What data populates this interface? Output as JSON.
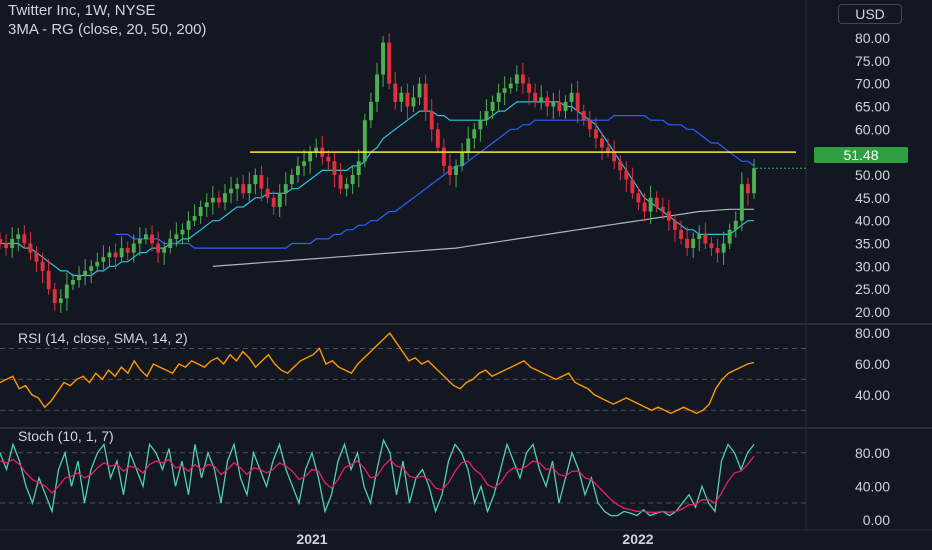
{
  "header": {
    "symbol_line": "Twitter Inc, 1W, NYSE",
    "ma_line": "3MA - RG (close, 20, 50, 200)",
    "currency": "USD",
    "last_price": "51.48"
  },
  "rsi_panel": {
    "label": "RSI (14, close, SMA, 14, 2)"
  },
  "stoch_panel": {
    "label": "Stoch (10, 1, 7)"
  },
  "colors": {
    "background": "#131722",
    "bull": "#4caf50",
    "bear": "#e0303c",
    "sma20": "#26c6da",
    "sma50": "#2962ff",
    "sma200": "#b2b5be",
    "resistance": "#ffeb3b",
    "rsi": "#ff9800",
    "stoch_k": "#4fd1b0",
    "stoch_d": "#e91e63",
    "price_badge": "#2ea043"
  },
  "chart_data": [
    {
      "type": "candlestick",
      "title": "Twitter Inc, 1W, NYSE",
      "x_tick_labels": [
        "2021",
        "2022"
      ],
      "y_tick_labels": [
        "20.00",
        "25.00",
        "30.00",
        "35.00",
        "40.00",
        "45.00",
        "50.00",
        "55.00",
        "60.00",
        "65.00",
        "70.00",
        "75.00",
        "80.00"
      ],
      "ylim": [
        18,
        82
      ],
      "resistance_level": 55,
      "last_price": 51.48,
      "closes": [
        35,
        34,
        36,
        37,
        35,
        33,
        31,
        29,
        25,
        22,
        23,
        26,
        27,
        28,
        29,
        30,
        31,
        32,
        33,
        32,
        34,
        33,
        35,
        36,
        37,
        35,
        33,
        34,
        36,
        37,
        38,
        40,
        41,
        43,
        44,
        45,
        44,
        46,
        47,
        48,
        46,
        48,
        50,
        47,
        45,
        43,
        46,
        48,
        50,
        52,
        53,
        55,
        56,
        54,
        53,
        50,
        47,
        48,
        50,
        53,
        62,
        66,
        72,
        79,
        70,
        66,
        68,
        65,
        67,
        70,
        64,
        60,
        56,
        52,
        50,
        52,
        55,
        58,
        60,
        62,
        64,
        66,
        68,
        69,
        70,
        72,
        70,
        68,
        66,
        67,
        65,
        66,
        64,
        66,
        68,
        64,
        62,
        60,
        58,
        56,
        55,
        53,
        51,
        49,
        46,
        44,
        42,
        45,
        43,
        42,
        40,
        38,
        36,
        34,
        36,
        37,
        35,
        34,
        33,
        35,
        38,
        40,
        48,
        46,
        51.48
      ],
      "series": [
        {
          "name": "SMA 20",
          "values": [
            35,
            35,
            35,
            35,
            34,
            34,
            33,
            32,
            31,
            30,
            29,
            29,
            28,
            28,
            28,
            28,
            29,
            29,
            30,
            30,
            31,
            31,
            32,
            33,
            33,
            34,
            34,
            34,
            35,
            35,
            36,
            36,
            37,
            38,
            39,
            40,
            40,
            41,
            42,
            43,
            43,
            44,
            45,
            45,
            46,
            46,
            46,
            46,
            47,
            47,
            48,
            49,
            50,
            51,
            51,
            51,
            51,
            51,
            52,
            52,
            53,
            55,
            56,
            58,
            59,
            60,
            61,
            62,
            63,
            64,
            64,
            64,
            63,
            63,
            62,
            62,
            62,
            62,
            62,
            62,
            62,
            63,
            64,
            64,
            65,
            66,
            66,
            66,
            66,
            66,
            66,
            66,
            66,
            65,
            65,
            64,
            63,
            62,
            61,
            59,
            57,
            55,
            53,
            51,
            49,
            47,
            45,
            44,
            43,
            42,
            41,
            40,
            39,
            38,
            38,
            37,
            37,
            37,
            37,
            37,
            37,
            38,
            39,
            40,
            40
          ]
        },
        {
          "name": "SMA 50",
          "values": [
            37,
            37,
            37,
            36,
            36,
            36,
            36,
            36,
            35,
            35,
            35,
            35,
            35,
            34,
            34,
            34,
            34,
            34,
            34,
            34,
            34,
            34,
            34,
            34,
            34,
            34,
            34,
            34,
            34,
            35,
            35,
            35,
            35,
            36,
            36,
            36,
            37,
            37,
            38,
            38,
            39,
            39,
            40,
            40,
            41,
            42,
            42,
            43,
            44,
            45,
            46,
            47,
            48,
            49,
            50,
            51,
            52,
            52,
            53,
            54,
            55,
            56,
            57,
            58,
            59,
            60,
            60,
            61,
            61,
            62,
            62,
            62,
            62,
            62,
            62,
            62,
            62,
            62,
            62,
            62,
            62,
            62,
            63,
            63,
            63,
            63,
            63,
            63,
            62,
            62,
            62,
            61,
            61,
            61,
            60,
            60,
            59,
            58,
            57,
            57,
            56,
            55,
            54,
            53,
            53,
            52
          ]
        },
        {
          "name": "SMA 200",
          "values": [
            30,
            30.1,
            30.2,
            30.3,
            30.4,
            30.5,
            30.6,
            30.7,
            30.8,
            30.9,
            31,
            31.1,
            31.2,
            31.3,
            31.4,
            31.5,
            31.6,
            31.7,
            31.8,
            31.9,
            32,
            32.1,
            32.2,
            32.3,
            32.4,
            32.5,
            32.6,
            32.7,
            32.8,
            32.9,
            33,
            33.1,
            33.2,
            33.3,
            33.4,
            33.5,
            33.6,
            33.7,
            33.8,
            33.9,
            34,
            34.2,
            34.4,
            34.6,
            34.8,
            35,
            35.2,
            35.4,
            35.6,
            35.8,
            36,
            36.2,
            36.4,
            36.6,
            36.8,
            37,
            37.2,
            37.4,
            37.6,
            37.8,
            38,
            38.2,
            38.4,
            38.6,
            38.8,
            39,
            39.2,
            39.4,
            39.6,
            39.8,
            40,
            40.2,
            40.4,
            40.6,
            40.8,
            41,
            41.2,
            41.4,
            41.6,
            41.8,
            42,
            42.1,
            42.2,
            42.3,
            42.4,
            42.5,
            42.5,
            42.5,
            42.5,
            42.5
          ]
        }
      ]
    },
    {
      "type": "line",
      "title": "RSI (14, close, SMA, 14, 2)",
      "y_tick_labels": [
        "40.00",
        "60.00",
        "80.00"
      ],
      "ylim": [
        25,
        82
      ],
      "levels": [
        30,
        50,
        70
      ],
      "series": [
        {
          "name": "RSI",
          "values": [
            48,
            50,
            52,
            44,
            46,
            40,
            38,
            32,
            36,
            42,
            48,
            46,
            50,
            52,
            48,
            54,
            50,
            56,
            52,
            58,
            54,
            62,
            56,
            52,
            60,
            58,
            56,
            54,
            60,
            58,
            62,
            60,
            58,
            62,
            64,
            60,
            66,
            62,
            68,
            64,
            58,
            62,
            66,
            60,
            56,
            54,
            58,
            62,
            64,
            66,
            70,
            60,
            62,
            58,
            56,
            54,
            60,
            64,
            68,
            72,
            76,
            80,
            74,
            68,
            62,
            64,
            60,
            62,
            58,
            54,
            50,
            46,
            44,
            48,
            50,
            54,
            56,
            52,
            54,
            56,
            58,
            60,
            62,
            58,
            56,
            54,
            52,
            50,
            52,
            54,
            48,
            46,
            44,
            40,
            38,
            36,
            34,
            36,
            38,
            36,
            34,
            32,
            30,
            32,
            30,
            28,
            30,
            32,
            30,
            28,
            30,
            34,
            44,
            50,
            54,
            56,
            58,
            60,
            61
          ]
        }
      ]
    },
    {
      "type": "line",
      "title": "Stoch (10, 1, 7)",
      "y_tick_labels": [
        "0.00",
        "40.00",
        "80.00"
      ],
      "ylim": [
        -5,
        100
      ],
      "levels": [
        20,
        80
      ],
      "series": [
        {
          "name": "%K",
          "values": [
            80,
            60,
            90,
            70,
            40,
            20,
            50,
            30,
            10,
            60,
            80,
            40,
            70,
            20,
            60,
            80,
            90,
            50,
            70,
            30,
            80,
            60,
            40,
            90,
            80,
            60,
            85,
            40,
            70,
            30,
            90,
            50,
            80,
            60,
            20,
            70,
            90,
            50,
            30,
            80,
            60,
            40,
            70,
            90,
            60,
            40,
            20,
            60,
            80,
            50,
            10,
            30,
            70,
            90,
            60,
            80,
            40,
            20,
            60,
            95,
            80,
            30,
            70,
            20,
            50,
            60,
            40,
            10,
            30,
            70,
            90,
            80,
            60,
            20,
            40,
            10,
            30,
            60,
            90,
            70,
            50,
            80,
            90,
            60,
            40,
            70,
            20,
            50,
            80,
            60,
            30,
            50,
            20,
            10,
            5,
            5,
            10,
            8,
            5,
            12,
            5,
            8,
            10,
            5,
            10,
            20,
            30,
            15,
            40,
            20,
            10,
            70,
            90,
            80,
            60,
            80,
            90
          ]
        },
        {
          "name": "%D",
          "values": [
            70,
            68,
            72,
            66,
            56,
            48,
            44,
            40,
            32,
            40,
            50,
            52,
            56,
            50,
            54,
            62,
            68,
            64,
            66,
            58,
            64,
            62,
            56,
            66,
            70,
            68,
            72,
            62,
            64,
            58,
            66,
            60,
            66,
            64,
            54,
            60,
            68,
            62,
            54,
            62,
            60,
            56,
            60,
            68,
            64,
            58,
            48,
            52,
            60,
            58,
            44,
            38,
            48,
            62,
            66,
            70,
            62,
            50,
            52,
            64,
            72,
            64,
            62,
            52,
            50,
            52,
            48,
            38,
            36,
            44,
            58,
            68,
            70,
            60,
            54,
            42,
            38,
            44,
            56,
            62,
            60,
            64,
            70,
            68,
            60,
            62,
            54,
            52,
            58,
            58,
            50,
            48,
            40,
            32,
            24,
            18,
            14,
            12,
            10,
            10,
            9,
            9,
            10,
            9,
            10,
            13,
            18,
            18,
            24,
            24,
            20,
            32,
            46,
            56,
            58,
            66,
            76
          ]
        }
      ]
    }
  ]
}
